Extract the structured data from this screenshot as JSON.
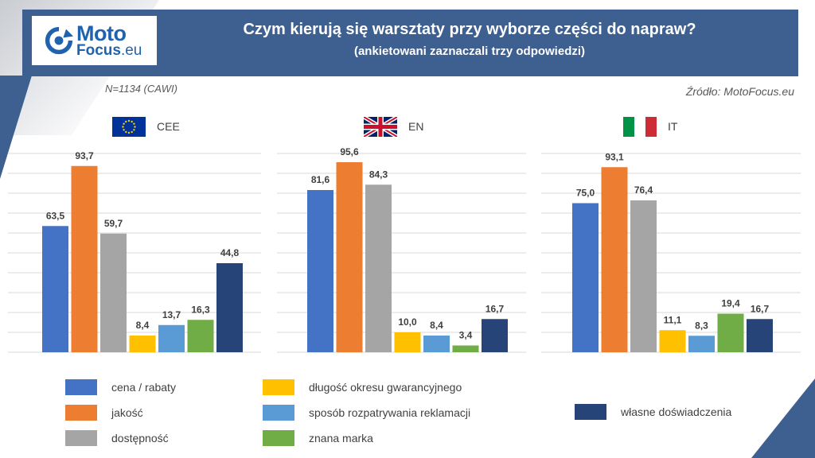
{
  "header": {
    "logo_moto": "Moto",
    "logo_focus": "Focus",
    "logo_eu": ".eu",
    "title": "Czym kierują się warsztaty przy wyborze części do napraw?",
    "subtitle": "(ankietowani zaznaczali trzy odpowiedzi)"
  },
  "meta": {
    "sample": "N=1134 (CAWI)",
    "source": "Źródło: MotoFocus.eu"
  },
  "colors": {
    "header_bg": "#3e6090",
    "cena": "#4472c4",
    "jakosc": "#ed7d31",
    "dostepnosc": "#a5a5a5",
    "gwarancja": "#ffc000",
    "reklamacje": "#5b9bd5",
    "marka": "#70ad47",
    "doswiadczenie": "#264478"
  },
  "chart_data": {
    "type": "bar",
    "grid": true,
    "ylim": [
      0,
      100
    ],
    "series_names": [
      "cena / rabaty",
      "jakość",
      "dostępność",
      "długość okresu gwarancyjnego",
      "sposób rozpatrywania reklamacji",
      "znana marka",
      "własne doświadczenia"
    ],
    "panels": [
      {
        "label": "CEE",
        "flag": "eu-flag",
        "values": [
          "63,5",
          "93,7",
          "59,7",
          "8,4",
          "13,7",
          "16,3",
          "44,8"
        ],
        "numeric": [
          63.5,
          93.7,
          59.7,
          8.4,
          13.7,
          16.3,
          44.8
        ]
      },
      {
        "label": "EN",
        "flag": "uk-flag",
        "values": [
          "81,6",
          "95,6",
          "84,3",
          "10,0",
          "8,4",
          "3,4",
          "16,7"
        ],
        "numeric": [
          81.6,
          95.6,
          84.3,
          10.0,
          8.4,
          3.4,
          16.7
        ]
      },
      {
        "label": "IT",
        "flag": "it-flag",
        "values": [
          "75,0",
          "93,1",
          "76,4",
          "11,1",
          "8,3",
          "19,4",
          "16,7"
        ],
        "numeric": [
          75.0,
          93.1,
          76.4,
          11.1,
          8.3,
          19.4,
          16.7
        ]
      }
    ]
  }
}
